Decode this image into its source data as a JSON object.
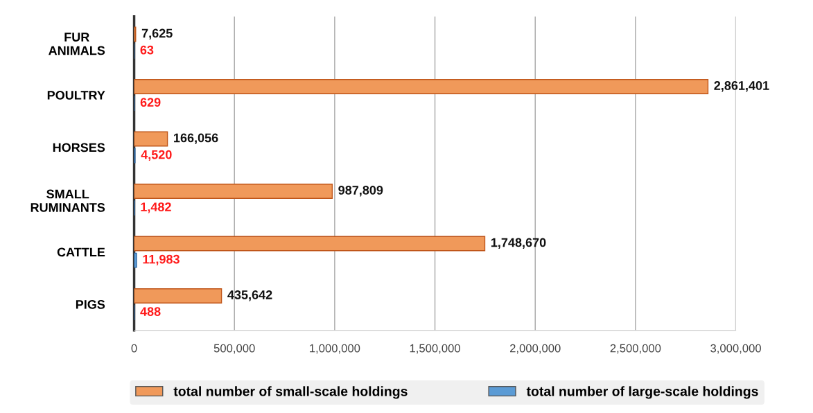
{
  "chart_data": {
    "type": "bar",
    "orientation": "horizontal",
    "categories": [
      "FUR\nANIMALS",
      "POULTRY",
      "HORSES",
      "SMALL\nRUMINANTS",
      "CATTLE",
      "PIGS"
    ],
    "series": [
      {
        "name": "total number of small-scale holdings",
        "color": "#f0995a",
        "values": [
          7625,
          2861401,
          166056,
          987809,
          1748670,
          435642
        ],
        "value_labels": [
          "7,625",
          "2,861,401",
          "166,056",
          "987,809",
          "1,748,670",
          "435,642"
        ]
      },
      {
        "name": "total number of large-scale holdings",
        "color": "#5b9bd5",
        "values": [
          63,
          629,
          4520,
          1482,
          11983,
          488
        ],
        "value_labels": [
          "63",
          "629",
          "4,520",
          "1,482",
          "11,983",
          "488"
        ]
      }
    ],
    "xlim": [
      0,
      3000000
    ],
    "xticks": [
      0,
      {
        "value": 500000,
        "label": "500,000"
      },
      {
        "value": 1000000,
        "label": "1,000,000"
      },
      {
        "value": 1500000,
        "label": "1,500,000"
      },
      {
        "value": 2000000,
        "label": "2,000,000"
      },
      {
        "value": 2500000,
        "label": "2,500,000"
      },
      {
        "value": 3000000,
        "label": "3,000,000"
      }
    ],
    "grid": "x",
    "legend": "bottom"
  }
}
